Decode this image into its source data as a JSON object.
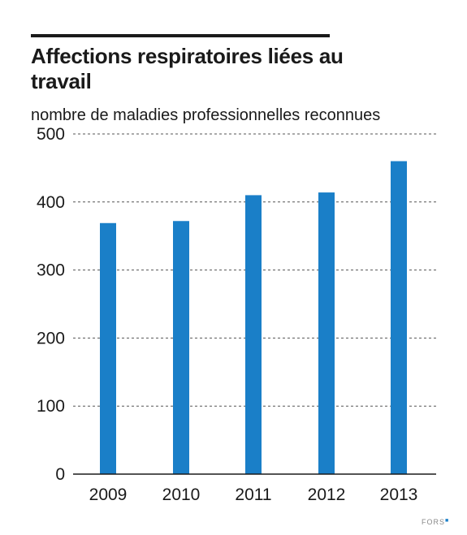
{
  "title": "Affections respiratoires liées au travail",
  "credit": "FORS",
  "colors": {
    "bar": "#1a7fc8",
    "text": "#1a1a1a",
    "grid": "#555555"
  },
  "chart_data": {
    "type": "bar",
    "title": "Affections respiratoires liées au travail",
    "subtitle": "nombre de maladies professionnelles reconnues",
    "xlabel": "",
    "ylabel": "",
    "categories": [
      "2009",
      "2010",
      "2011",
      "2012",
      "2013"
    ],
    "values": [
      369,
      372,
      410,
      414,
      460
    ],
    "ylim": [
      0,
      500
    ],
    "yticks": [
      0,
      100,
      200,
      300,
      400,
      500
    ],
    "grid": "horizontal-dashed",
    "legend": "none"
  }
}
